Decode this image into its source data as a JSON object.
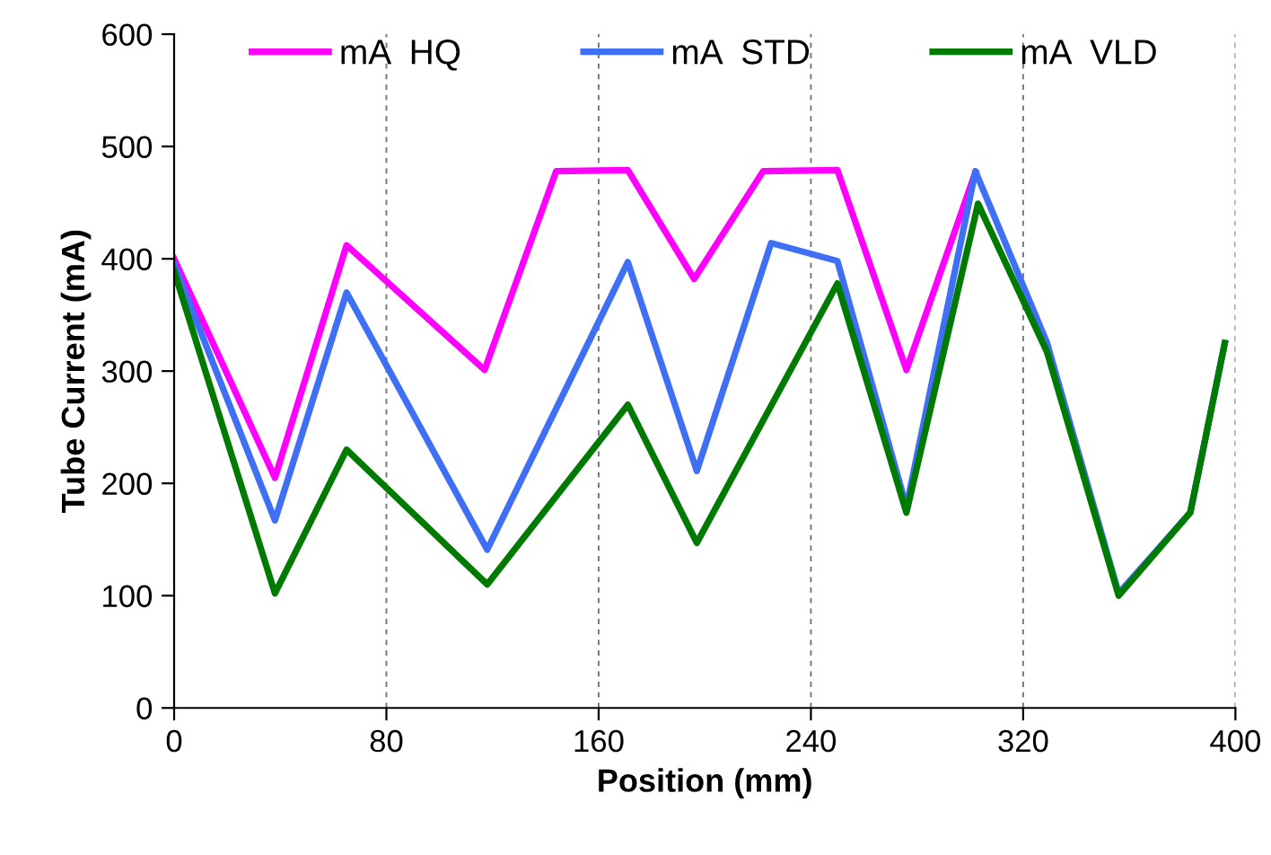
{
  "chart_data": {
    "type": "line",
    "xlabel": "Position (mm)",
    "ylabel": "Tube Current (mA)",
    "xlim": [
      0,
      400
    ],
    "xticks": [
      0,
      80,
      160,
      240,
      320,
      400
    ],
    "ylim": [
      0,
      600
    ],
    "yticks": [
      0,
      100,
      200,
      300,
      400,
      500,
      600
    ],
    "grid": "x",
    "legend": "top",
    "marker": "none",
    "line_style": "solid",
    "series": [
      {
        "name": "mA  HQ",
        "color": "#ff00ff",
        "x": [
          0,
          38,
          65,
          117,
          144,
          171,
          196,
          222,
          250,
          276,
          302
        ],
        "values": [
          400,
          205,
          412,
          301,
          478,
          479,
          382,
          478,
          479,
          301,
          477
        ]
      },
      {
        "name": "mA  STD",
        "color": "#3f6ff5",
        "x": [
          0,
          38,
          65,
          118,
          171,
          197,
          225,
          250,
          276,
          302,
          329,
          356,
          383,
          396
        ],
        "values": [
          395,
          167,
          370,
          141,
          397,
          211,
          414,
          398,
          179,
          478,
          325,
          102,
          174,
          325
        ]
      },
      {
        "name": "mA  VLD",
        "color": "#007a00",
        "x": [
          0,
          38,
          65,
          118,
          171,
          197,
          250,
          276,
          303,
          329,
          356,
          383,
          396
        ],
        "values": [
          389,
          102,
          230,
          110,
          270,
          147,
          378,
          174,
          449,
          317,
          100,
          174,
          325
        ]
      }
    ]
  }
}
